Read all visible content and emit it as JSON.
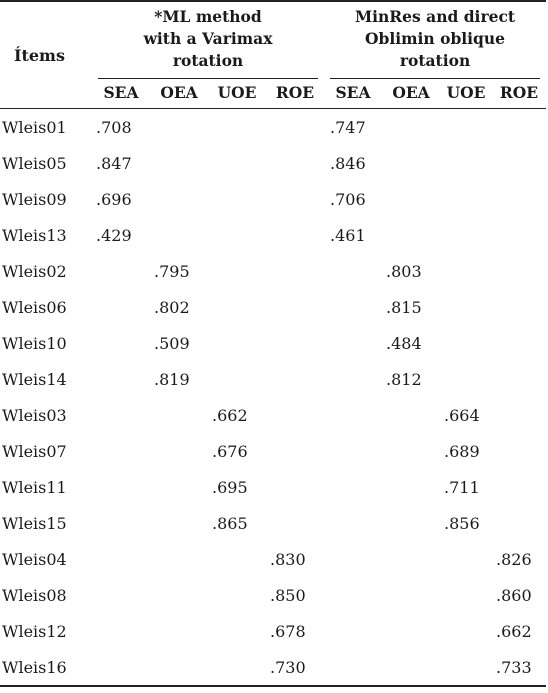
{
  "header": {
    "items_label": "Ítems",
    "group1": [
      "*ML method",
      "with a Varimax",
      "rotation"
    ],
    "group2": [
      "MinRes and direct",
      "Oblimin oblique",
      "rotation"
    ],
    "sub_columns": [
      "SEA",
      "OEA",
      "UOE",
      "ROE",
      "SEA",
      "OEA",
      "UOE",
      "ROE"
    ]
  },
  "rows": [
    {
      "item": "Wleis01",
      "cells": [
        ".708",
        "",
        "",
        "",
        ".747",
        "",
        "",
        ""
      ]
    },
    {
      "item": "Wleis05",
      "cells": [
        ".847",
        "",
        "",
        "",
        ".846",
        "",
        "",
        ""
      ]
    },
    {
      "item": "Wleis09",
      "cells": [
        ".696",
        "",
        "",
        "",
        ".706",
        "",
        "",
        ""
      ]
    },
    {
      "item": "Wleis13",
      "cells": [
        ".429",
        "",
        "",
        "",
        ".461",
        "",
        "",
        ""
      ]
    },
    {
      "item": "Wleis02",
      "cells": [
        "",
        ".795",
        "",
        "",
        "",
        ".803",
        "",
        ""
      ]
    },
    {
      "item": "Wleis06",
      "cells": [
        "",
        ".802",
        "",
        "",
        "",
        ".815",
        "",
        ""
      ]
    },
    {
      "item": "Wleis10",
      "cells": [
        "",
        ".509",
        "",
        "",
        "",
        ".484",
        "",
        ""
      ]
    },
    {
      "item": "Wleis14",
      "cells": [
        "",
        ".819",
        "",
        "",
        "",
        ".812",
        "",
        ""
      ]
    },
    {
      "item": "Wleis03",
      "cells": [
        "",
        "",
        ".662",
        "",
        "",
        "",
        ".664",
        ""
      ]
    },
    {
      "item": "Wleis07",
      "cells": [
        "",
        "",
        ".676",
        "",
        "",
        "",
        ".689",
        ""
      ]
    },
    {
      "item": "Wleis11",
      "cells": [
        "",
        "",
        ".695",
        "",
        "",
        "",
        ".711",
        ""
      ]
    },
    {
      "item": "Wleis15",
      "cells": [
        "",
        "",
        ".865",
        "",
        "",
        "",
        ".856",
        ""
      ]
    },
    {
      "item": "Wleis04",
      "cells": [
        "",
        "",
        "",
        ".830",
        "",
        "",
        "",
        ".826"
      ]
    },
    {
      "item": "Wleis08",
      "cells": [
        "",
        "",
        "",
        ".850",
        "",
        "",
        "",
        ".860"
      ]
    },
    {
      "item": "Wleis12",
      "cells": [
        "",
        "",
        "",
        ".678",
        "",
        "",
        "",
        ".662"
      ]
    },
    {
      "item": "Wleis16",
      "cells": [
        "",
        "",
        "",
        ".730",
        "",
        "",
        "",
        ".733"
      ]
    }
  ]
}
